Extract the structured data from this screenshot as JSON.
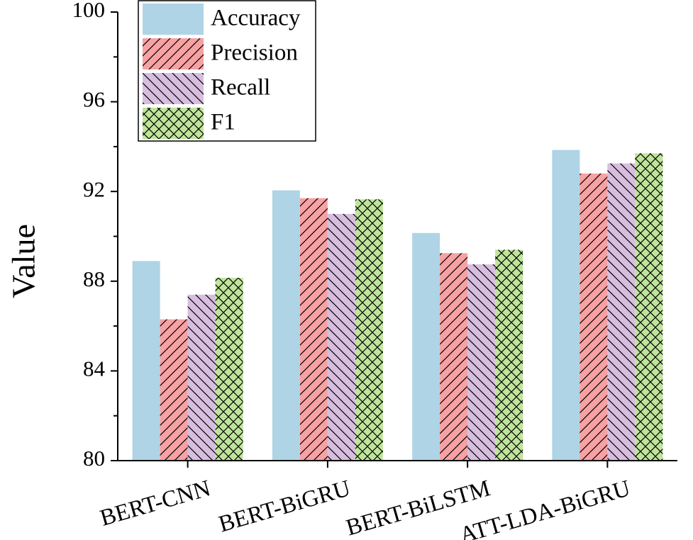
{
  "chart_data": {
    "type": "bar",
    "categories": [
      "BERT-CNN",
      "BERT-BiGRU",
      "BERT-BiLSTM",
      "ATT-LDA-BiGRU"
    ],
    "series": [
      {
        "name": "Accuracy",
        "values": [
          88.9,
          92.05,
          90.15,
          93.85
        ],
        "color": "#aed4e6",
        "pattern": "solid"
      },
      {
        "name": "Precision",
        "values": [
          86.3,
          91.7,
          89.25,
          92.8
        ],
        "color": "#f7a1a3",
        "pattern": "forward-diagonal"
      },
      {
        "name": "Recall",
        "values": [
          87.4,
          91.0,
          88.75,
          93.25
        ],
        "color": "#d7bedf",
        "pattern": "backward-diagonal"
      },
      {
        "name": "F1",
        "values": [
          88.15,
          91.65,
          89.4,
          93.7
        ],
        "color": "#bfe59b",
        "pattern": "crosshatch"
      }
    ],
    "xlabel": "",
    "ylabel": "Value",
    "ylim": [
      80,
      100
    ],
    "yticks": [
      "80",
      "84",
      "88",
      "92",
      "96",
      "100"
    ],
    "legend_position": "top-left",
    "grid": false
  }
}
